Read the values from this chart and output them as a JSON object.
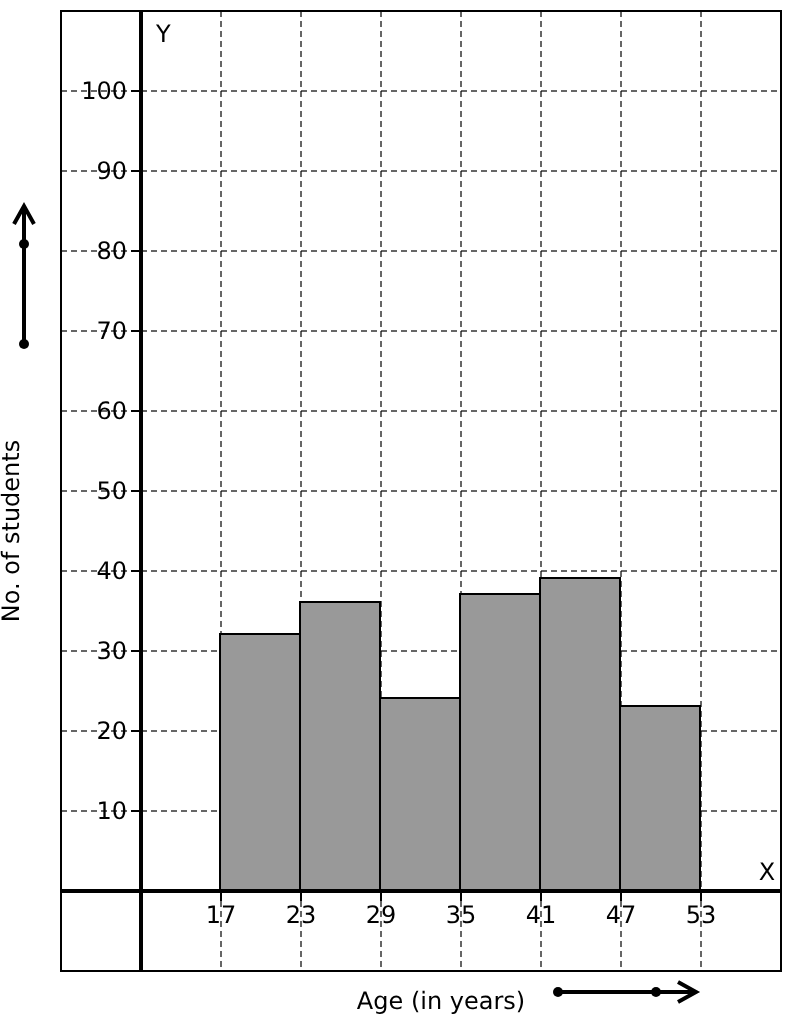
{
  "chart_data": {
    "type": "histogram",
    "xlabel": "Age (in years)",
    "ylabel": "No. of students",
    "bins": [
      17,
      23,
      29,
      35,
      41,
      47,
      53
    ],
    "values": [
      32,
      36,
      24,
      37,
      39,
      23
    ],
    "color": "#999999",
    "xlim": [
      5,
      59
    ],
    "ylim": [
      -10,
      110
    ],
    "xticks": [
      17,
      23,
      29,
      35,
      41,
      47,
      53
    ],
    "yticks": [
      10,
      20,
      30,
      40,
      50,
      60,
      70,
      80,
      90,
      100
    ],
    "grid": true,
    "annotations": [
      "X",
      "Y"
    ]
  }
}
